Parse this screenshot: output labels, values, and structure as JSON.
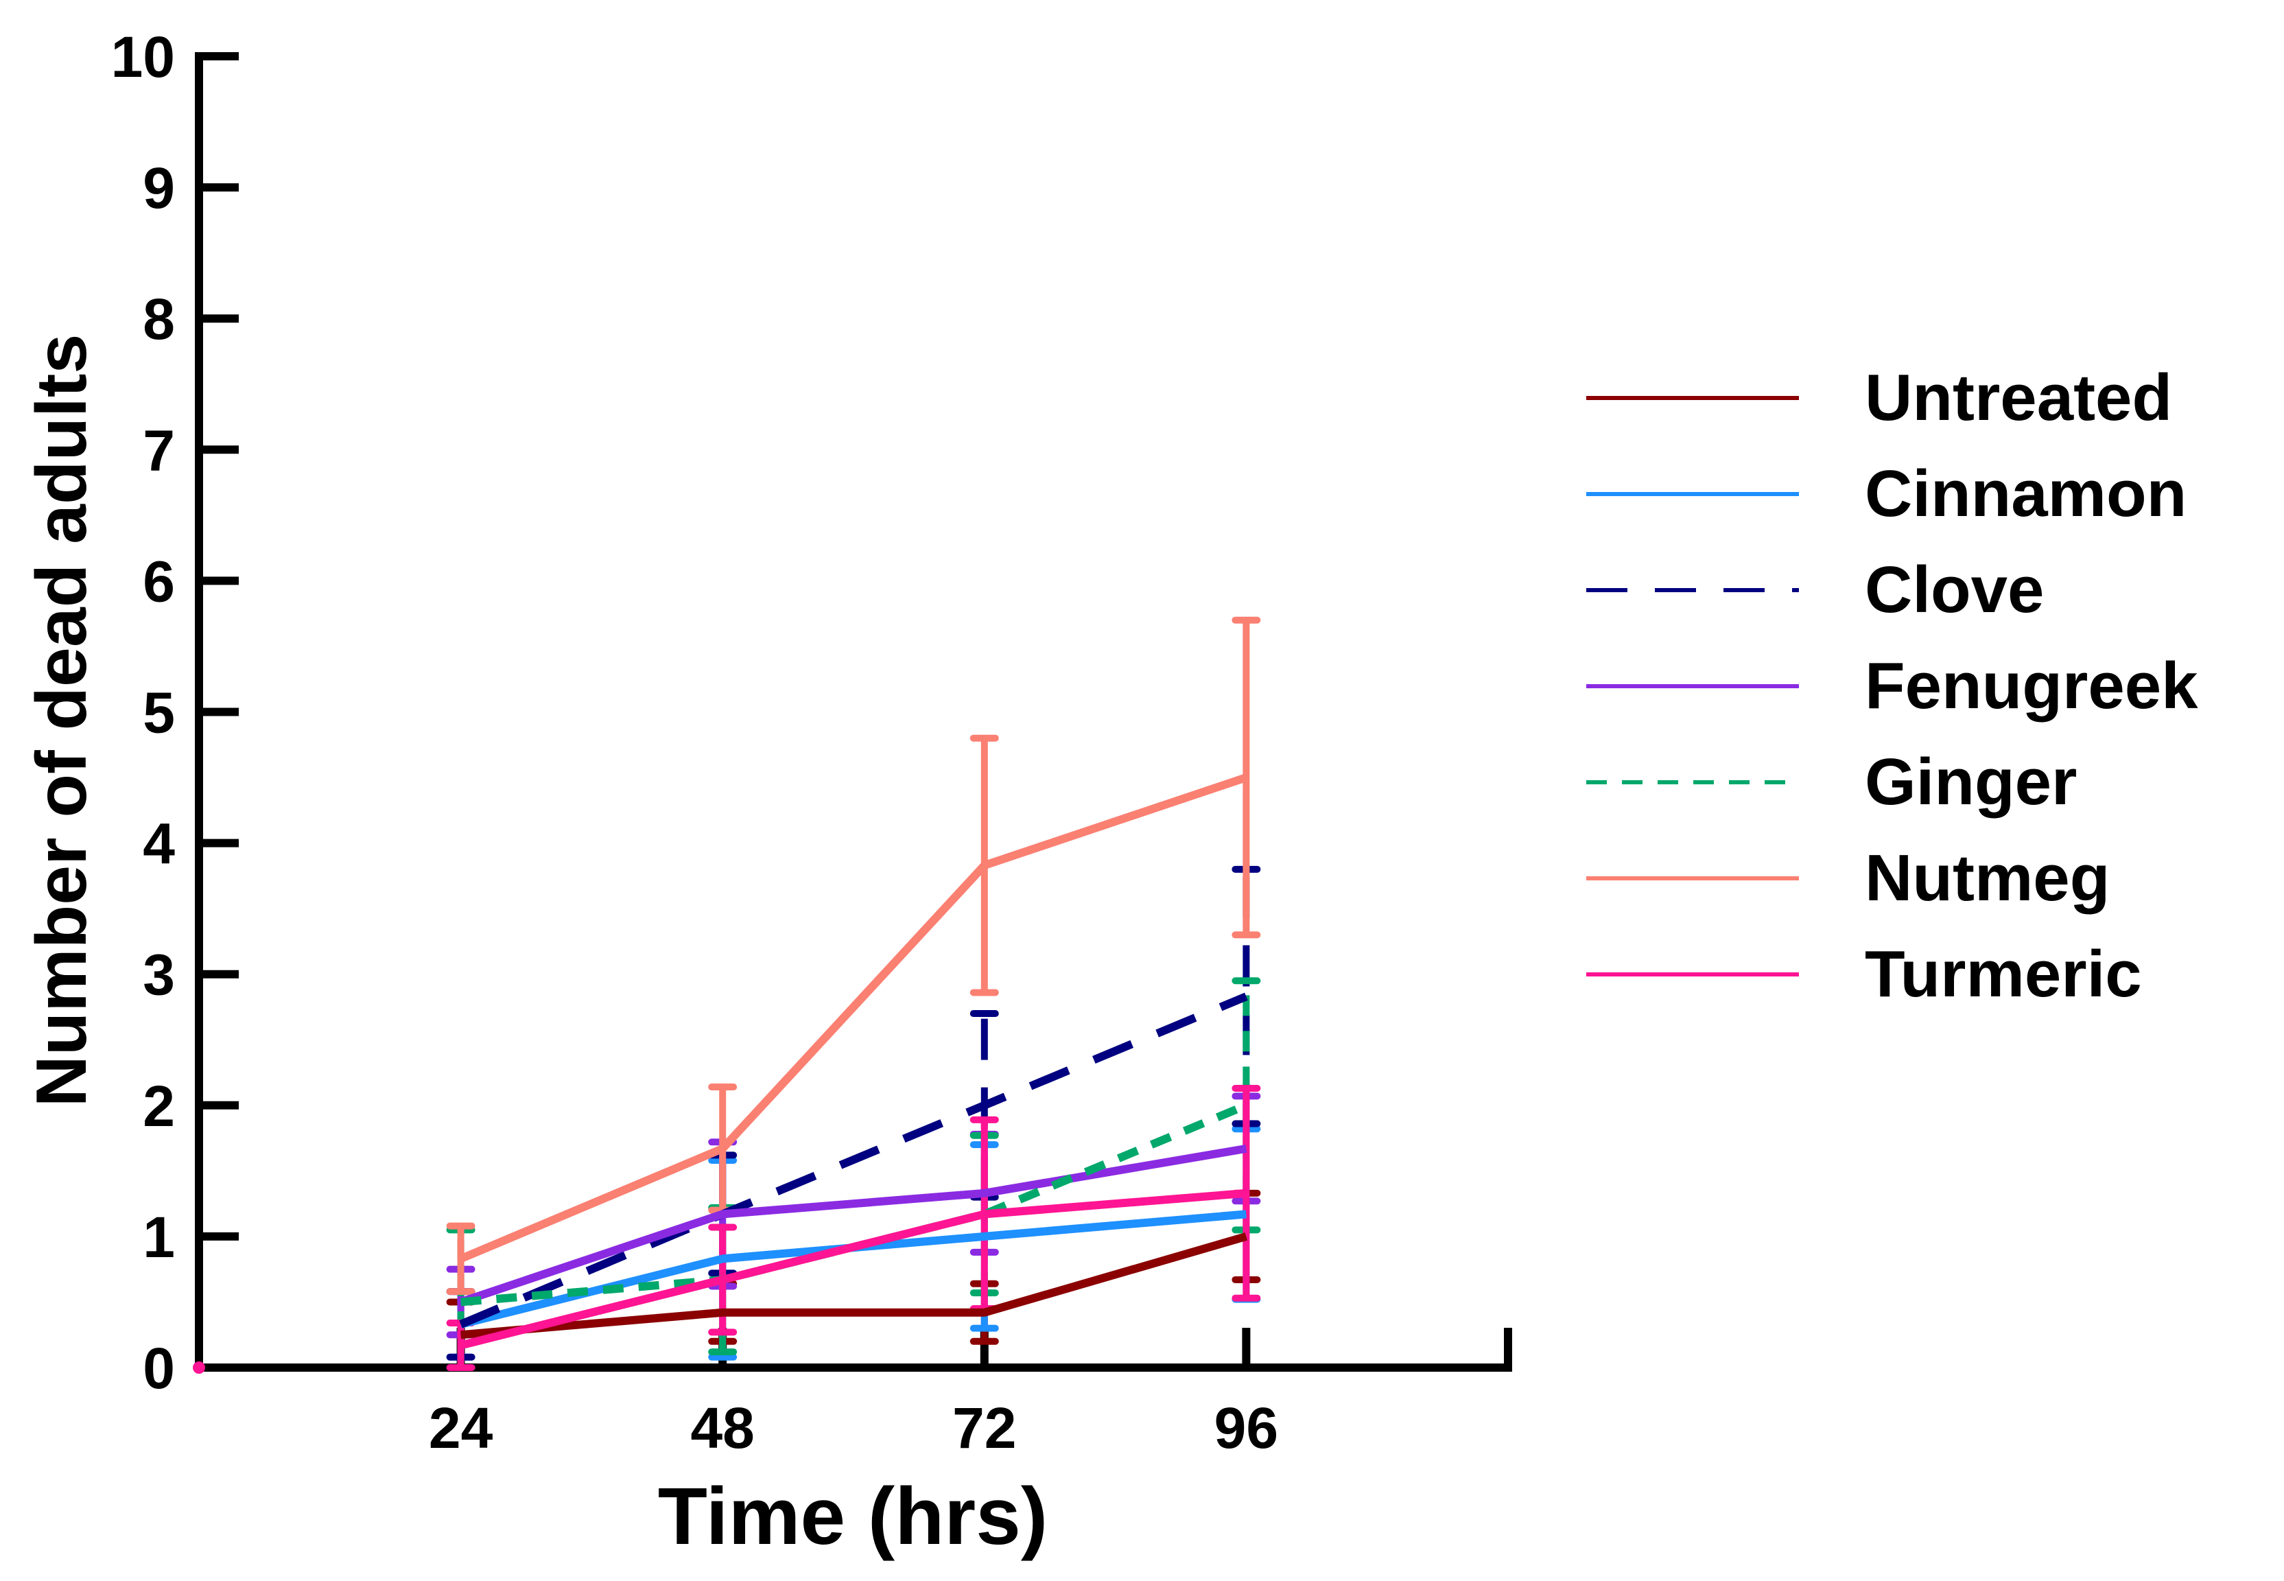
{
  "chart_data": {
    "type": "line",
    "title": "",
    "xlabel": "Time (hrs)",
    "ylabel": "Number of dead adults",
    "categories": [
      "24",
      "48",
      "72",
      "96"
    ],
    "x": [
      24,
      48,
      72,
      96
    ],
    "xlim": [
      0,
      120
    ],
    "ylim": [
      0,
      10
    ],
    "yticks": [
      "0",
      "1",
      "2",
      "3",
      "4",
      "5",
      "6",
      "7",
      "8",
      "9",
      "10"
    ],
    "grid": false,
    "legend_position": "right",
    "error_bars": true,
    "series": [
      {
        "name": "Untreated",
        "color": "#8B0000",
        "dash": "solid",
        "values": [
          0.25,
          0.42,
          0.42,
          1.0
        ],
        "errors": [
          0.25,
          0.22,
          0.22,
          0.33
        ]
      },
      {
        "name": "Cinnamon",
        "color": "#1E90FF",
        "dash": "solid",
        "values": [
          0.33,
          0.83,
          1.0,
          1.17
        ],
        "errors": [
          0.25,
          0.75,
          0.7,
          0.65
        ]
      },
      {
        "name": "Clove",
        "color": "#000080",
        "dash": "long-dash",
        "values": [
          0.33,
          1.17,
          2.0,
          2.83
        ],
        "errors": [
          0.25,
          0.45,
          0.7,
          0.97
        ]
      },
      {
        "name": "Fenugreek",
        "color": "#8A2BE2",
        "dash": "solid",
        "values": [
          0.5,
          1.17,
          1.33,
          1.67
        ],
        "errors": [
          0.25,
          0.55,
          0.45,
          0.4
        ]
      },
      {
        "name": "Ginger",
        "color": "#00A86B",
        "dash": "short-dash",
        "values": [
          0.5,
          0.67,
          1.17,
          2.0
        ],
        "errors": [
          0.55,
          0.55,
          0.6,
          0.95
        ]
      },
      {
        "name": "Nutmeg",
        "color": "#FA8072",
        "dash": "solid",
        "values": [
          0.83,
          1.67,
          3.83,
          4.5
        ],
        "errors": [
          0.25,
          0.47,
          0.97,
          1.2
        ]
      },
      {
        "name": "Turmeric",
        "color": "#FF1493",
        "dash": "solid",
        "values": [
          0.17,
          0.67,
          1.17,
          1.33
        ],
        "errors": [
          0.17,
          0.4,
          0.72,
          0.8
        ]
      }
    ]
  }
}
